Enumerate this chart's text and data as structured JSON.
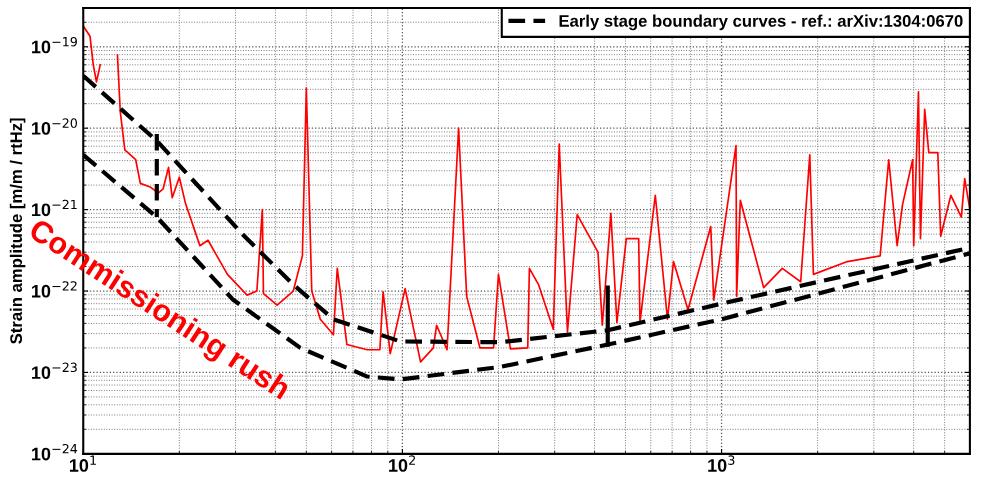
{
  "chart_data": {
    "type": "line",
    "ylabel": "Strain amplitude [m/m / rtHz]",
    "log": "xy",
    "grid": true,
    "legend": "top right",
    "marker": "none",
    "xlim": [
      10,
      6000
    ],
    "xticks": [
      {
        "value": 10,
        "label": "10$^{1}$"
      },
      {
        "value": 100,
        "label": "10$^{2}$"
      },
      {
        "value": 1000,
        "label": "10$^{3}$"
      }
    ],
    "ylim": [
      1e-24,
      3e-19
    ],
    "yticks": [
      {
        "value": 1e-24,
        "label": "10$^{−24}$"
      },
      {
        "value": 1e-23,
        "label": "10$^{−23}$"
      },
      {
        "value": 1e-22,
        "label": "10$^{−22}$"
      },
      {
        "value": 1e-21,
        "label": "10$^{−21}$"
      },
      {
        "value": 1e-20,
        "label": "10$^{−20}$"
      },
      {
        "value": 1e-19,
        "label": "10$^{−19}$"
      }
    ],
    "annotations": [
      "Commissioning rush"
    ],
    "series": [
      {
        "color": "#ff0000",
        "line_style": "solid",
        "x": [
          10,
          10.5,
          10.75,
          11,
          11.3,
          11.9,
          12.3,
          12.8,
          13.06,
          13.5,
          14.6,
          15.1,
          16.2,
          17.2,
          17.8,
          18.5,
          19,
          20,
          20.9,
          22.4,
          23.2,
          24.6,
          28.3,
          32.6,
          35,
          36.4,
          36.7,
          40.5,
          45.5,
          48.6,
          50,
          52,
          55.3,
          60.8,
          62.5,
          67,
          77.6,
          85,
          87,
          91.6,
          102,
          114,
          125,
          128,
          138,
          150,
          159,
          175,
          193,
          200,
          218,
          247,
          250,
          267,
          297,
          310,
          329,
          353,
          410,
          423,
          450,
          470,
          503,
          550,
          555,
          620,
          677,
          707,
          785,
          925,
          945,
          1110,
          1115,
          1145,
          1355,
          1550,
          1770,
          1890,
          1940,
          2480,
          3140,
          3340,
          3550,
          3690,
          3970,
          4000,
          4140,
          4200,
          4330,
          4460,
          4760,
          4860,
          5230,
          5640,
          5780,
          6000
        ],
        "values": [
          1.8e-19,
          1.35e-19,
          6e-20,
          3.7e-20,
          6e-20,
          null,
          null,
          7.9e-20,
          1.6e-20,
          5.4e-21,
          4.1e-21,
          2.1e-21,
          1.9e-21,
          1.6e-21,
          1.8e-21,
          3.3e-21,
          1.4e-21,
          2.5e-21,
          1.2e-21,
          5.4e-22,
          3.6e-22,
          4.2e-22,
          1.6e-22,
          8.9e-23,
          1e-22,
          1e-21,
          9.3e-23,
          6.7e-23,
          1e-22,
          2.7e-22,
          3.1e-20,
          1e-22,
          4.5e-23,
          2.9e-23,
          1.9e-22,
          2.2e-23,
          1.9e-23,
          1.9e-23,
          9.8e-23,
          1.7e-23,
          1.07e-22,
          1.35e-23,
          2e-23,
          3.8e-23,
          1.9e-23,
          1e-20,
          8.6e-23,
          2e-23,
          2e-23,
          1.6e-22,
          1.95e-23,
          2e-23,
          1.9e-22,
          1.2e-22,
          3.4e-23,
          6.4e-21,
          3.15e-23,
          8.7e-22,
          3e-22,
          3.8e-23,
          9e-22,
          4.1e-23,
          4.4e-22,
          4.4e-22,
          4.1e-23,
          1.5e-21,
          4.5e-23,
          2.3e-22,
          5.9e-23,
          6.2e-22,
          7.7e-23,
          6.1e-21,
          8.6e-23,
          1.3e-21,
          1.1e-22,
          1.9e-22,
          1.3e-22,
          4.7e-21,
          1.6e-22,
          2.3e-22,
          2.7e-22,
          4.1e-21,
          3.6e-22,
          1.15e-21,
          4.1e-21,
          3.6e-22,
          2.8e-20,
          4.4e-22,
          1.7e-20,
          5e-21,
          5e-21,
          4.7e-22,
          1.5e-21,
          8.1e-22,
          2.4e-21,
          1e-21
        ]
      },
      {
        "name": "Early stage boundary curves - ref.: arXiv:1304:0670",
        "color": "#000000",
        "line_style": "dashed",
        "x": [
          10,
          17,
          32,
          45.5,
          60.8,
          98.6,
          203,
          440,
          1000,
          6000
        ],
        "values": [
          4.4e-20,
          7e-21,
          4.7e-22,
          1.2e-22,
          4.5e-23,
          2.4e-23,
          2.35e-23,
          3.3e-23,
          7e-23,
          3.4e-22
        ]
      },
      {
        "color": "#000000",
        "line_style": "dashed",
        "x": [
          10,
          17,
          29.5,
          47.9,
          77.6,
          98.6,
          203,
          440,
          1000,
          6000
        ],
        "values": [
          4.7e-21,
          8.1e-22,
          7.8e-23,
          2e-23,
          8.9e-24,
          8.2e-24,
          1.17e-23,
          2.2e-23,
          4.5e-23,
          2.9e-22
        ]
      },
      {
        "color": "#000000",
        "line_style": "dashed",
        "x": [
          17,
          17
        ],
        "values": [
          8.5e-21,
          8.1e-22
        ]
      },
      {
        "color": "#000000",
        "line_style": "solid",
        "x": [
          440,
          440
        ],
        "values": [
          1.1e-22,
          2.2e-23
        ]
      }
    ]
  }
}
